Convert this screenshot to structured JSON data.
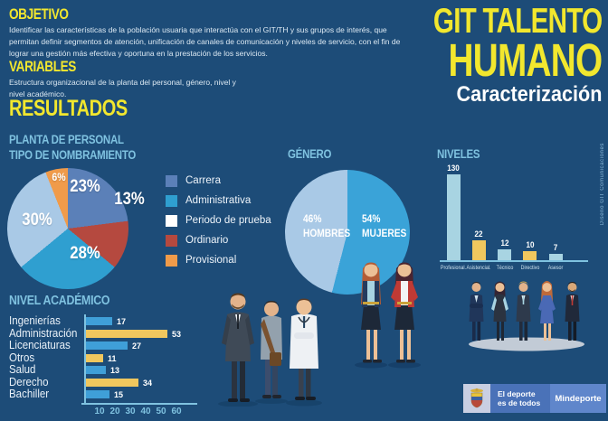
{
  "page": {
    "title_line1": "GIT TALENTO",
    "title_line2": "HUMANO",
    "subtitle": "Caracterización",
    "credit": "Diseño GIT Comunicaciones",
    "background_color": "#1d4c78",
    "accent_yellow": "#f2e72e",
    "accent_lightblue": "#7fc2e0"
  },
  "sections": {
    "objetivo": {
      "heading": "OBJETIVO",
      "body": "Identificar las características de la población usuaria que interactúa con el GIT/TH y sus grupos de interés, que permitan definir segmentos de atención, unificación de canales de comunicación y niveles de servicio, con el fin de lograr una gestión más efectiva y oportuna en la prestación de los servicios."
    },
    "variables": {
      "heading": "VARIABLES",
      "body": "Estructura organizacional de la planta del personal, género, nivel y nivel académico."
    },
    "resultados": {
      "heading": "RESULTADOS"
    }
  },
  "chart_data": [
    {
      "id": "tipo_nombramiento",
      "type": "pie",
      "title_line1": "PLANTA DE PERSONAL",
      "title_line2": "TIPO DE NOMBRAMIENTO",
      "slices": [
        {
          "label": "Carrera",
          "value": 23,
          "color": "#5b80b8"
        },
        {
          "label": "Ordinario",
          "value": 13,
          "color": "#b5493f"
        },
        {
          "label": "Administrativa",
          "value": 28,
          "color": "#2f9fd0"
        },
        {
          "label": "Periodo de prueba",
          "value": 30,
          "color": "#a9c9e6"
        },
        {
          "label": "Provisional",
          "value": 6,
          "color": "#f09b4a"
        }
      ],
      "legend": [
        {
          "label": "Carrera",
          "color": "#5b80b8"
        },
        {
          "label": "Administrativa",
          "color": "#2f9fd0"
        },
        {
          "label": "Periodo de prueba",
          "color": "#ffffff"
        },
        {
          "label": "Ordinario",
          "color": "#b5493f"
        },
        {
          "label": "Provisional",
          "color": "#f09b4a"
        }
      ],
      "legend_position": "right"
    },
    {
      "id": "genero",
      "type": "pie",
      "title": "GÉNERO",
      "slices": [
        {
          "label": "HOMBRES",
          "value": 46,
          "color": "#a9c9e6"
        },
        {
          "label": "MUJERES",
          "value": 54,
          "color": "#3aa3d8"
        }
      ]
    },
    {
      "id": "niveles",
      "type": "bar",
      "title": "NIVELES",
      "categories": [
        "Profesional.",
        "Asistencial.",
        "Técnico",
        "Directivo",
        "Asesor"
      ],
      "values": [
        130,
        22,
        12,
        10,
        7
      ],
      "bar_colors": [
        "#a8d4e2",
        "#f0c75e",
        "#a8d4e2",
        "#f0c75e",
        "#a8d4e2"
      ],
      "ylim": [
        0,
        130
      ],
      "grid": false
    },
    {
      "id": "nivel_academico",
      "type": "bar-horizontal",
      "title": "NIVEL ACADÉMICO",
      "categories": [
        "Ingenierías",
        "Administración",
        "Licenciaturas",
        "Otros",
        "Salud",
        "Derecho",
        "Bachiller"
      ],
      "values": [
        17,
        53,
        27,
        11,
        13,
        34,
        15
      ],
      "bar_colors": [
        "#3f9fd8",
        "#f0c75e",
        "#3f9fd8",
        "#f0c75e",
        "#3f9fd8",
        "#f0c75e",
        "#3f9fd8"
      ],
      "x_ticks": [
        10,
        20,
        30,
        40,
        50,
        60
      ],
      "xlim": [
        0,
        65
      ],
      "grid": false
    }
  ],
  "footer": {
    "brand_line1": "El deporte",
    "brand_line2": "es de todos",
    "brand_name": "Mindeporte"
  }
}
